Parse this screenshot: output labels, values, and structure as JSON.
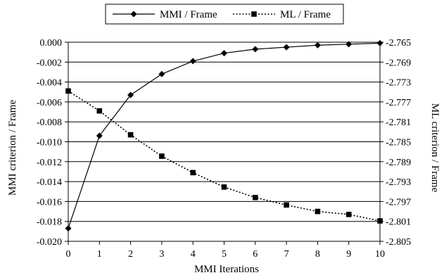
{
  "chart_data": {
    "type": "line",
    "title": "",
    "xlabel": "MMI Iterations",
    "ylabel_left": "MMI criterion / Frame",
    "ylabel_right": "ML criterion / Frame",
    "x": [
      0,
      1,
      2,
      3,
      4,
      5,
      6,
      7,
      8,
      9,
      10
    ],
    "x_ticks": [
      "0",
      "1",
      "2",
      "3",
      "4",
      "5",
      "6",
      "7",
      "8",
      "9",
      "10"
    ],
    "ylim_left": [
      -0.02,
      0.0
    ],
    "ylim_right": [
      -2.805,
      -2.765
    ],
    "y_ticks_left": [
      "0.000",
      "-0.002",
      "-0.004",
      "-0.006",
      "-0.008",
      "-0.010",
      "-0.012",
      "-0.014",
      "-0.016",
      "-0.018",
      "-0.020"
    ],
    "y_ticks_right": [
      "-2.765",
      "-2.769",
      "-2.773",
      "-2.777",
      "-2.781",
      "-2.785",
      "-2.789",
      "-2.793",
      "-2.797",
      "-2.801",
      "-2.805"
    ],
    "grid": "horizontal",
    "legend_position": "top",
    "series": [
      {
        "name": "MMI / Frame",
        "axis": "left",
        "marker": "diamond",
        "line_style": "solid",
        "values": [
          -0.0187,
          -0.0094,
          -0.0053,
          -0.0032,
          -0.0019,
          -0.0011,
          -0.0007,
          -0.0005,
          -0.0003,
          -0.0002,
          -0.0001
        ]
      },
      {
        "name": "ML / Frame",
        "axis": "right",
        "marker": "square",
        "line_style": "dotted",
        "values": [
          -2.7748,
          -2.7788,
          -2.7836,
          -2.7879,
          -2.7912,
          -2.7941,
          -2.7962,
          -2.7977,
          -2.799,
          -2.7996,
          -2.8009
        ]
      }
    ]
  }
}
